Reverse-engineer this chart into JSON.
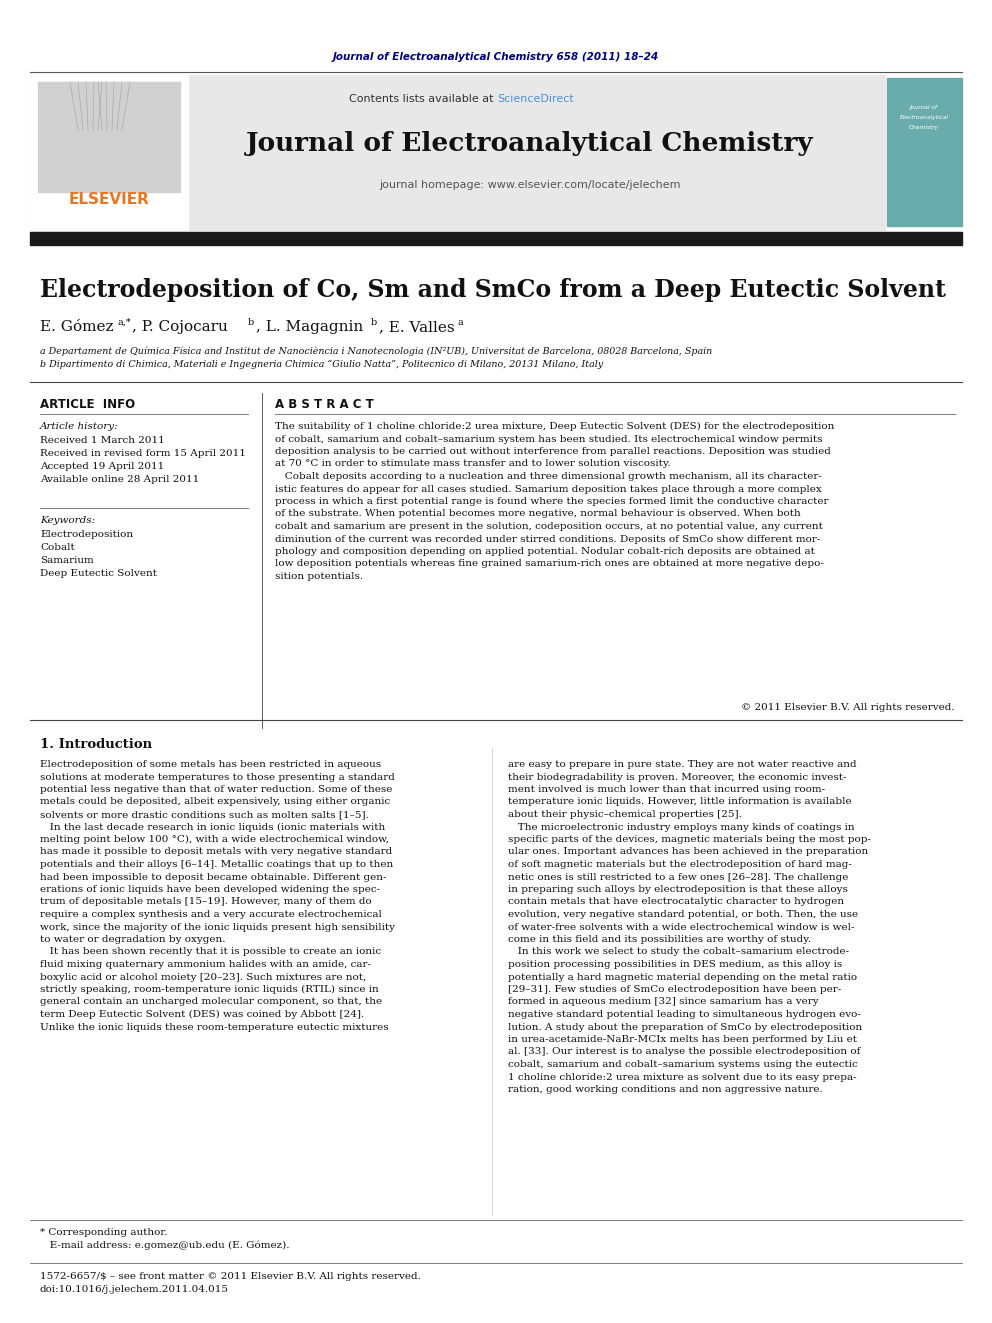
{
  "page_bg": "#ffffff",
  "top_journal_ref": "Journal of Electroanalytical Chemistry 658 (2011) 18–24",
  "top_journal_ref_color": "#000080",
  "header_bg": "#e8e8e8",
  "header_sciencedirect_color": "#4a90d9",
  "journal_title": "Journal of Electroanalytical Chemistry",
  "journal_homepage": "journal homepage: www.elsevier.com/locate/jelechem",
  "black_bar_color": "#1a1a1a",
  "article_title": "Electrodeposition of Co, Sm and SmCo from a Deep Eutectic Solvent",
  "affil_a": "a Departament de Química Física and Institut de Nanociència i Nanotecnologia (IN²UB), Universitat de Barcelona, 08028 Barcelona, Spain",
  "affil_b": "b Dipartimento di Chimica, Materiali e Ingegneria Chimica “Giulio Natta”, Politecnico di Milano, 20131 Milano, Italy",
  "article_info_header": "ARTICLE  INFO",
  "article_history_label": "Article history:",
  "article_history": [
    "Received 1 March 2011",
    "Received in revised form 15 April 2011",
    "Accepted 19 April 2011",
    "Available online 28 April 2011"
  ],
  "keywords_label": "Keywords:",
  "keywords": [
    "Electrodeposition",
    "Cobalt",
    "Samarium",
    "Deep Eutectic Solvent"
  ],
  "abstract_header": "A B S T R A C T",
  "copyright": "© 2011 Elsevier B.V. All rights reserved.",
  "intro_header": "1. Introduction",
  "abstract_lines": [
    "The suitability of 1 choline chloride:2 urea mixture, Deep Eutectic Solvent (DES) for the electrodeposition",
    "of cobalt, samarium and cobalt–samarium system has been studied. Its electrochemical window permits",
    "deposition analysis to be carried out without interference from parallel reactions. Deposition was studied",
    "at 70 °C in order to stimulate mass transfer and to lower solution viscosity.",
    "   Cobalt deposits according to a nucleation and three dimensional growth mechanism, all its character-",
    "istic features do appear for all cases studied. Samarium deposition takes place through a more complex",
    "process in which a first potential range is found where the species formed limit the conductive character",
    "of the substrate. When potential becomes more negative, normal behaviour is observed. When both",
    "cobalt and samarium are present in the solution, codeposition occurs, at no potential value, any current",
    "diminution of the current was recorded under stirred conditions. Deposits of SmCo show different mor-",
    "phology and composition depending on applied potential. Nodular cobalt-rich deposits are obtained at",
    "low deposition potentials whereas fine grained samarium-rich ones are obtained at more negative depo-",
    "sition potentials."
  ],
  "col1_lines": [
    "Electrodeposition of some metals has been restricted in aqueous",
    "solutions at moderate temperatures to those presenting a standard",
    "potential less negative than that of water reduction. Some of these",
    "metals could be deposited, albeit expensively, using either organic",
    "solvents or more drastic conditions such as molten salts [1–5].",
    "   In the last decade research in ionic liquids (ionic materials with",
    "melting point below 100 °C), with a wide electrochemical window,",
    "has made it possible to deposit metals with very negative standard",
    "potentials and their alloys [6–14]. Metallic coatings that up to then",
    "had been impossible to deposit became obtainable. Different gen-",
    "erations of ionic liquids have been developed widening the spec-",
    "trum of depositable metals [15–19]. However, many of them do",
    "require a complex synthesis and a very accurate electrochemical",
    "work, since the majority of the ionic liquids present high sensibility",
    "to water or degradation by oxygen.",
    "   It has been shown recently that it is possible to create an ionic",
    "fluid mixing quaternary ammonium halides with an amide, car-",
    "boxylic acid or alcohol moiety [20–23]. Such mixtures are not,",
    "strictly speaking, room-temperature ionic liquids (RTIL) since in",
    "general contain an uncharged molecular component, so that, the",
    "term Deep Eutectic Solvent (DES) was coined by Abbott [24].",
    "Unlike the ionic liquids these room-temperature eutectic mixtures"
  ],
  "col2_lines": [
    "are easy to prepare in pure state. They are not water reactive and",
    "their biodegradability is proven. Moreover, the economic invest-",
    "ment involved is much lower than that incurred using room-",
    "temperature ionic liquids. However, little information is available",
    "about their physic–chemical properties [25].",
    "   The microelectronic industry employs many kinds of coatings in",
    "specific parts of the devices, magnetic materials being the most pop-",
    "ular ones. Important advances has been achieved in the preparation",
    "of soft magnetic materials but the electrodeposition of hard mag-",
    "netic ones is still restricted to a few ones [26–28]. The challenge",
    "in preparing such alloys by electrodeposition is that these alloys",
    "contain metals that have electrocatalytic character to hydrogen",
    "evolution, very negative standard potential, or both. Then, the use",
    "of water-free solvents with a wide electrochemical window is wel-",
    "come in this field and its possibilities are worthy of study.",
    "   In this work we select to study the cobalt–samarium electrode-",
    "position processing possibilities in DES medium, as this alloy is",
    "potentially a hard magnetic material depending on the metal ratio",
    "[29–31]. Few studies of SmCo electrodeposition have been per-",
    "formed in aqueous medium [32] since samarium has a very",
    "negative standard potential leading to simultaneous hydrogen evo-",
    "lution. A study about the preparation of SmCo by electrodeposition",
    "in urea-acetamide-NaBr-MCIx melts has been performed by Liu et",
    "al. [33]. Our interest is to analyse the possible electrodeposition of",
    "cobalt, samarium and cobalt–samarium systems using the eutectic",
    "1 choline chloride:2 urea mixture as solvent due to its easy prepa-",
    "ration, good working conditions and non aggressive nature."
  ],
  "footer_line1": "* Corresponding author.",
  "footer_line2": "   E-mail address: e.gomez@ub.edu (E. Gómez).",
  "footer_issn": "1572-6657/$ – see front matter © 2011 Elsevier B.V. All rights reserved.",
  "footer_doi": "doi:10.1016/j.jelechem.2011.04.015"
}
